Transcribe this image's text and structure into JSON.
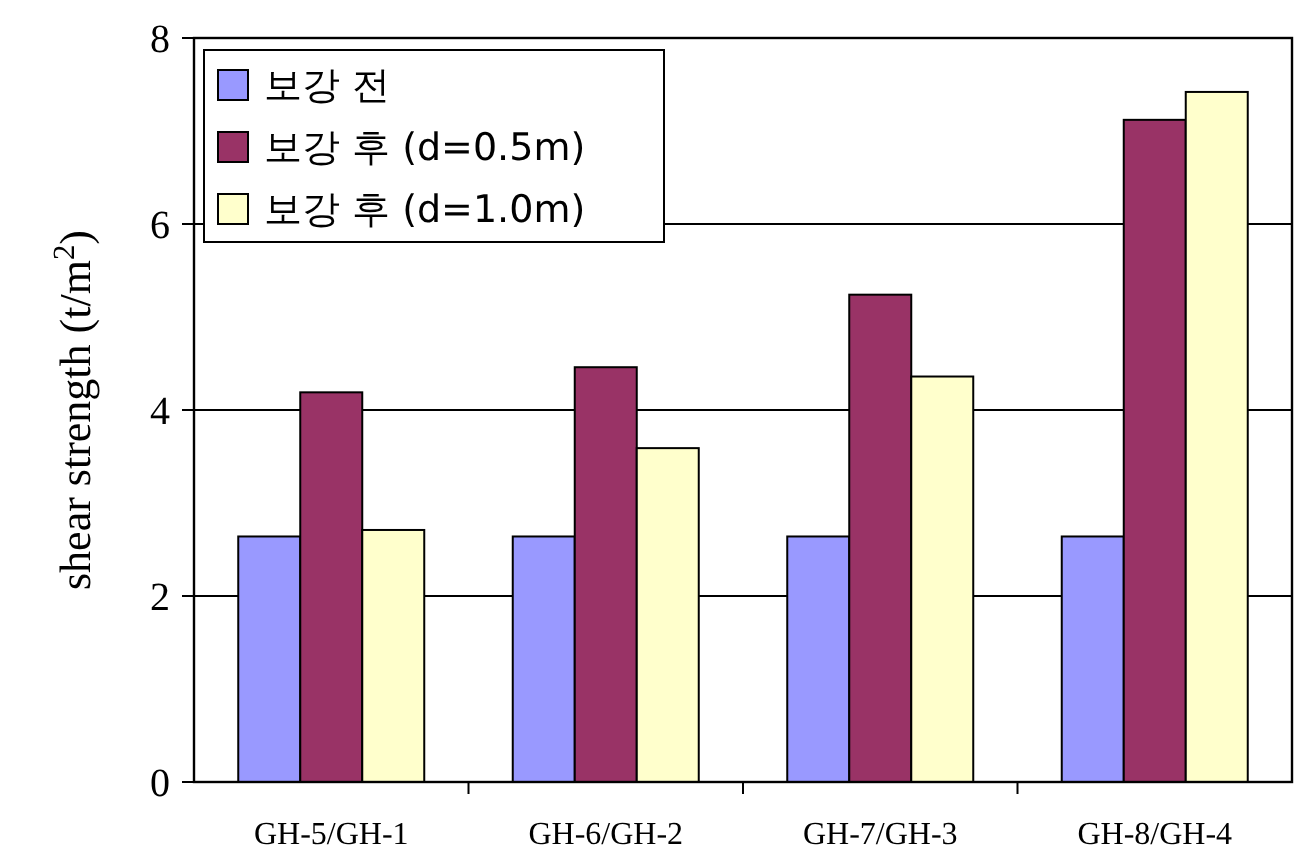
{
  "chart_data": {
    "type": "bar",
    "ylabel": "shear strength (t/m$^{2}$)",
    "categories": [
      "GH-5/GH-1",
      "GH-6/GH-2",
      "GH-7/GH-3",
      "GH-8/GH-4"
    ],
    "series": [
      {
        "name": "보강 전",
        "color": "#9999ff",
        "values": [
          2.64,
          2.64,
          2.64,
          2.64
        ]
      },
      {
        "name": "보강 후 (d=0.5m)",
        "color": "#993366",
        "values": [
          4.19,
          4.46,
          5.24,
          7.12
        ]
      },
      {
        "name": "보강 후 (d=1.0m)",
        "color": "#ffffcc",
        "values": [
          2.71,
          3.59,
          4.36,
          7.42
        ]
      }
    ],
    "ylim": [
      0,
      8
    ],
    "yticks": [
      0,
      2,
      4,
      6,
      8
    ],
    "grid": "y",
    "legend": "top left"
  }
}
